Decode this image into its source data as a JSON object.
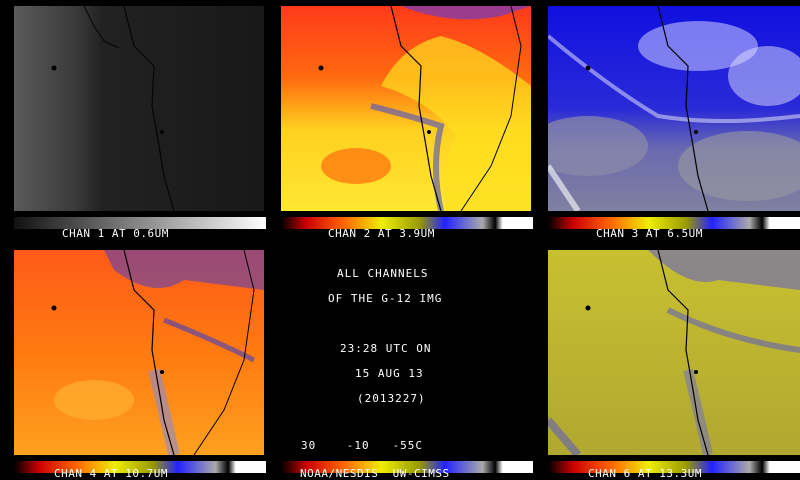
{
  "panels": [
    {
      "label": "CHAN 1 AT 0.6UM",
      "palette": "gray"
    },
    {
      "label": "CHAN 2 AT 3.9UM",
      "palette": "fire"
    },
    {
      "label": "CHAN 3 AT 6.5UM",
      "palette": "blue"
    },
    {
      "label": "CHAN 4 AT 10.7UM",
      "palette": "fire"
    },
    {
      "label": "CHAN 6 AT 13.3UM",
      "palette": "olive"
    }
  ],
  "center": {
    "line1": "ALL CHANNELS",
    "line2": "OF THE G-12 IMG",
    "time": "23:28 UTC ON",
    "date": "15 AUG 13",
    "julian": "(2013227)",
    "scale": "30    -10   -55C",
    "credit": "NOAA/NESDIS  UW-CIMSS"
  },
  "colors": {
    "background": "#000000",
    "coastline": "#000000",
    "text": "#ffffff"
  }
}
